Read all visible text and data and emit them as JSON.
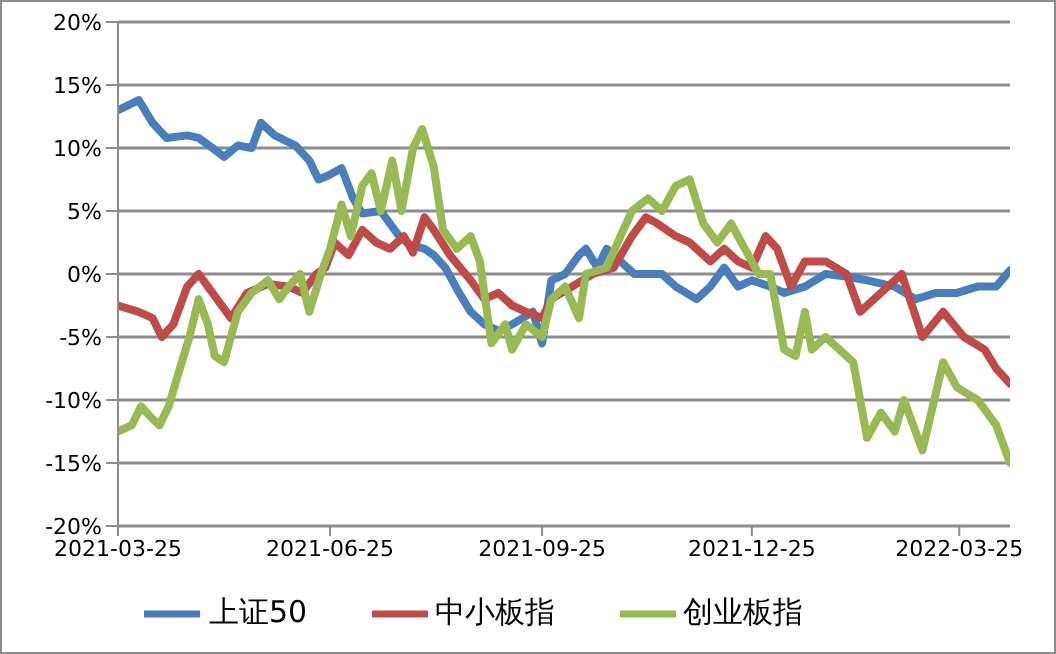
{
  "chart_data": {
    "type": "line",
    "xlim": [
      "2021-03-25",
      "2022-04-16"
    ],
    "xticks": [
      "2021-03-25",
      "2021-06-25",
      "2021-09-25",
      "2021-12-25",
      "2022-03-25"
    ],
    "ylim": [
      -20,
      20
    ],
    "yticks": [
      {
        "value": -20,
        "label": "-20%"
      },
      {
        "value": -15,
        "label": "-15%"
      },
      {
        "value": -10,
        "label": "-10%"
      },
      {
        "value": -5,
        "label": "-5%"
      },
      {
        "value": 0,
        "label": "0%"
      },
      {
        "value": 5,
        "label": "5%"
      },
      {
        "value": 10,
        "label": "10%"
      },
      {
        "value": 15,
        "label": "15%"
      },
      {
        "value": 20,
        "label": "20%"
      }
    ],
    "grid": "y",
    "legend": "bottom",
    "marker": "none",
    "line_style": "solid",
    "series": [
      {
        "name": "上证50",
        "color": "#4a7ebb",
        "x": [
          "2021-03-25",
          "2021-04-03",
          "2021-04-09",
          "2021-04-15",
          "2021-04-24",
          "2021-04-29",
          "2021-05-05",
          "2021-05-10",
          "2021-05-16",
          "2021-05-22",
          "2021-05-26",
          "2021-06-01",
          "2021-06-10",
          "2021-06-16",
          "2021-06-20",
          "2021-06-24",
          "2021-06-30",
          "2021-07-05",
          "2021-07-09",
          "2021-07-17",
          "2021-07-21",
          "2021-07-25",
          "2021-07-30",
          "2021-08-05",
          "2021-08-09",
          "2021-08-14",
          "2021-08-20",
          "2021-08-25",
          "2021-08-31",
          "2021-09-06",
          "2021-09-12",
          "2021-09-21",
          "2021-09-25",
          "2021-09-29",
          "2021-10-05",
          "2021-10-11",
          "2021-10-14",
          "2021-10-19",
          "2021-10-23",
          "2021-10-29",
          "2021-11-04",
          "2021-11-10",
          "2021-11-16",
          "2021-11-22",
          "2021-12-01",
          "2021-12-07",
          "2021-12-13",
          "2021-12-19",
          "2021-12-25",
          "2022-01-02",
          "2022-01-08",
          "2022-01-17",
          "2022-01-26",
          "2022-02-04",
          "2022-02-13",
          "2022-02-25",
          "2022-03-06",
          "2022-03-15",
          "2022-03-24",
          "2022-04-02",
          "2022-04-10",
          "2022-04-16"
        ],
        "values": [
          13,
          13.8,
          12,
          10.8,
          11,
          10.8,
          10,
          9.3,
          10.2,
          10,
          12,
          11,
          10.2,
          9,
          7.5,
          7.8,
          8.4,
          6,
          4.8,
          5,
          4,
          3,
          2.3,
          2,
          1.5,
          0.5,
          -1.5,
          -3,
          -4,
          -4.5,
          -4,
          -3,
          -5.5,
          -0.5,
          0,
          1.5,
          2,
          0.5,
          2,
          1,
          0,
          0,
          0,
          -1,
          -2,
          -1,
          0.5,
          -1,
          -0.5,
          -1,
          -1.5,
          -1,
          0,
          -0.2,
          -0.5,
          -1,
          -2,
          -1.5,
          -1.5,
          -1,
          -1,
          0.3
        ]
      },
      {
        "name": "中小板指",
        "color": "#be4b48",
        "x": [
          "2021-03-25",
          "2021-04-03",
          "2021-04-09",
          "2021-04-13",
          "2021-04-18",
          "2021-04-24",
          "2021-04-29",
          "2021-05-05",
          "2021-05-13",
          "2021-05-20",
          "2021-05-29",
          "2021-06-07",
          "2021-06-13",
          "2021-06-19",
          "2021-06-23",
          "2021-06-27",
          "2021-07-03",
          "2021-07-09",
          "2021-07-15",
          "2021-07-21",
          "2021-07-27",
          "2021-07-31",
          "2021-08-05",
          "2021-08-09",
          "2021-08-16",
          "2021-08-25",
          "2021-08-31",
          "2021-09-06",
          "2021-09-12",
          "2021-09-18",
          "2021-09-25",
          "2021-09-29",
          "2021-10-08",
          "2021-10-17",
          "2021-10-26",
          "2021-11-03",
          "2021-11-09",
          "2021-11-14",
          "2021-11-22",
          "2021-11-28",
          "2021-12-07",
          "2021-12-13",
          "2021-12-19",
          "2021-12-25",
          "2021-12-31",
          "2022-01-05",
          "2022-01-11",
          "2022-01-17",
          "2022-01-26",
          "2022-02-04",
          "2022-02-10",
          "2022-02-19",
          "2022-02-28",
          "2022-03-09",
          "2022-03-18",
          "2022-03-27",
          "2022-04-05",
          "2022-04-10",
          "2022-04-16"
        ],
        "values": [
          -2.5,
          -3,
          -3.5,
          -5,
          -4,
          -1,
          0,
          -1.5,
          -3.5,
          -1.5,
          -0.8,
          -1,
          -1.5,
          0,
          0.5,
          2.5,
          1.5,
          3.5,
          2.5,
          2,
          3,
          1.7,
          4.5,
          3.5,
          1.5,
          -0.5,
          -2,
          -1.5,
          -2.5,
          -3,
          -3.5,
          -2,
          -1,
          0,
          0.5,
          3,
          4.5,
          4,
          3,
          2.5,
          1,
          2,
          1,
          0.5,
          3,
          2,
          -1,
          1,
          1,
          0,
          -3,
          -1.5,
          0,
          -5,
          -3,
          -5,
          -6,
          -7.5,
          -8.7
        ]
      },
      {
        "name": "创业板指",
        "color": "#98b954",
        "x": [
          "2021-03-25",
          "2021-03-31",
          "2021-04-04",
          "2021-04-09",
          "2021-04-12",
          "2021-04-16",
          "2021-04-20",
          "2021-04-25",
          "2021-04-29",
          "2021-05-03",
          "2021-05-06",
          "2021-05-10",
          "2021-05-16",
          "2021-05-22",
          "2021-05-29",
          "2021-06-03",
          "2021-06-07",
          "2021-06-12",
          "2021-06-16",
          "2021-06-21",
          "2021-06-25",
          "2021-06-30",
          "2021-07-04",
          "2021-07-09",
          "2021-07-13",
          "2021-07-17",
          "2021-07-22",
          "2021-07-26",
          "2021-07-31",
          "2021-08-04",
          "2021-08-09",
          "2021-08-13",
          "2021-08-19",
          "2021-08-25",
          "2021-08-29",
          "2021-09-03",
          "2021-09-09",
          "2021-09-12",
          "2021-09-18",
          "2021-09-25",
          "2021-09-29",
          "2021-10-05",
          "2021-10-11",
          "2021-10-14",
          "2021-10-23",
          "2021-10-29",
          "2021-11-03",
          "2021-11-10",
          "2021-11-16",
          "2021-11-22",
          "2021-11-28",
          "2021-12-04",
          "2021-12-10",
          "2021-12-16",
          "2021-12-22",
          "2021-12-28",
          "2022-01-02",
          "2022-01-08",
          "2022-01-13",
          "2022-01-17",
          "2022-01-20",
          "2022-01-26",
          "2022-02-07",
          "2022-02-13",
          "2022-02-19",
          "2022-02-25",
          "2022-03-01",
          "2022-03-09",
          "2022-03-18",
          "2022-03-24",
          "2022-04-02",
          "2022-04-10",
          "2022-04-16"
        ],
        "values": [
          -12.5,
          -12,
          -10.5,
          -11.5,
          -12,
          -10.5,
          -8,
          -5,
          -2,
          -4,
          -6.5,
          -7,
          -3,
          -1.5,
          -0.5,
          -2,
          -1,
          0,
          -3,
          0,
          2,
          5.5,
          3,
          7,
          8,
          5,
          9,
          5,
          10,
          11.5,
          8.5,
          3.5,
          2,
          3,
          1,
          -5.5,
          -4,
          -6,
          -4,
          -5,
          -2,
          -1,
          -3.5,
          0,
          0.5,
          3,
          5,
          6,
          5,
          7,
          7.5,
          4,
          2.5,
          4,
          2,
          0,
          0,
          -6,
          -6.5,
          -3,
          -6,
          -5,
          -7,
          -13,
          -11,
          -12.5,
          -10,
          -14,
          -7,
          -9,
          -10,
          -12,
          -15
        ]
      }
    ]
  }
}
